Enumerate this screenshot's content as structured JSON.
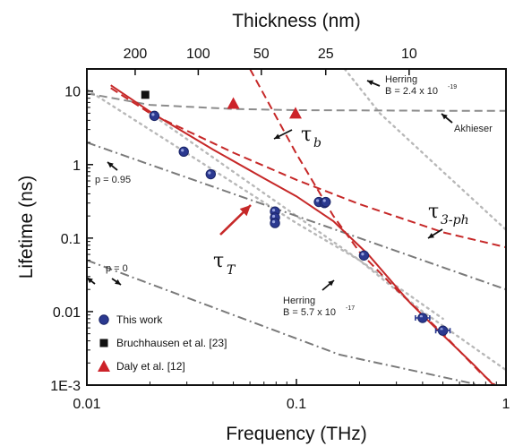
{
  "chart_data": {
    "type": "scatter",
    "xlabel": "Frequency (THz)",
    "ylabel": "Lifetime (ns)",
    "top_xlabel": "Thickness (nm)",
    "xscale": "log",
    "yscale": "log",
    "xlim": [
      0.01,
      1
    ],
    "ylim": [
      0.001,
      20
    ],
    "x_ticks": [
      {
        "v": 0.01,
        "label": "0.01"
      },
      {
        "v": 0.1,
        "label": "0.1"
      },
      {
        "v": 1,
        "label": "1"
      }
    ],
    "y_ticks": [
      {
        "v": 10,
        "label": "10"
      },
      {
        "v": 1,
        "label": "1"
      },
      {
        "v": 0.1,
        "label": "0.1"
      },
      {
        "v": 0.01,
        "label": "0.01"
      },
      {
        "v": 0.001,
        "label": "1E-3"
      }
    ],
    "top_ticks": [
      {
        "v": 0.017,
        "label": "200"
      },
      {
        "v": 0.034,
        "label": "100"
      },
      {
        "v": 0.068,
        "label": "50"
      },
      {
        "v": 0.138,
        "label": "25"
      },
      {
        "v": 0.345,
        "label": "10"
      }
    ],
    "series": [
      {
        "name": "This work",
        "marker": "circle",
        "color": "#2b3990",
        "points": [
          {
            "x": 0.021,
            "y": 4.6
          },
          {
            "x": 0.029,
            "y": 1.5
          },
          {
            "x": 0.039,
            "y": 0.74
          },
          {
            "x": 0.079,
            "y": 0.23
          },
          {
            "x": 0.079,
            "y": 0.19
          },
          {
            "x": 0.079,
            "y": 0.16
          },
          {
            "x": 0.128,
            "y": 0.31
          },
          {
            "x": 0.136,
            "y": 0.3
          },
          {
            "x": 0.138,
            "y": 0.31
          },
          {
            "x": 0.21,
            "y": 0.058
          },
          {
            "x": 0.4,
            "y": 0.0082
          },
          {
            "x": 0.5,
            "y": 0.0055
          }
        ]
      },
      {
        "name": "Bruchhausen et al. [23]",
        "marker": "square",
        "color": "#111111",
        "points": [
          {
            "x": 0.019,
            "y": 8.9
          }
        ]
      },
      {
        "name": "Daly et al. [12]",
        "marker": "triangle",
        "color": "#cc2229",
        "points": [
          {
            "x": 0.05,
            "y": 6.8
          },
          {
            "x": 0.099,
            "y": 5.0
          }
        ]
      }
    ],
    "lines": [
      {
        "id": "tau_T",
        "style": "solid",
        "color": "#c62828",
        "points": [
          [
            0.013,
            12
          ],
          [
            0.021,
            4.8
          ],
          [
            0.04,
            1.6
          ],
          [
            0.07,
            0.65
          ],
          [
            0.1,
            0.37
          ],
          [
            0.15,
            0.17
          ],
          [
            0.22,
            0.06
          ],
          [
            0.35,
            0.013
          ],
          [
            0.5,
            0.0048
          ],
          [
            0.7,
            0.0019
          ],
          [
            0.95,
            0.00078
          ]
        ]
      },
      {
        "id": "tau_b",
        "style": "dashed",
        "color": "#c62828",
        "points": [
          [
            0.06,
            20
          ],
          [
            0.1,
            1.4
          ],
          [
            0.15,
            0.2
          ],
          [
            0.2,
            0.065
          ],
          [
            0.3,
            0.02
          ],
          [
            0.5,
            0.005
          ],
          [
            0.75,
            0.0015
          ],
          [
            1.0,
            0.00075
          ]
        ]
      },
      {
        "id": "tau_3ph",
        "style": "dashed",
        "color": "#c62828",
        "points": [
          [
            0.013,
            11
          ],
          [
            0.02,
            5
          ],
          [
            0.05,
            1.45
          ],
          [
            0.1,
            0.62
          ],
          [
            0.2,
            0.29
          ],
          [
            0.5,
            0.12
          ],
          [
            1.0,
            0.075
          ]
        ]
      },
      {
        "id": "akhieser",
        "style": "dashed",
        "color": "#8c8c8c",
        "points": [
          [
            0.01,
            9.3
          ],
          [
            0.02,
            6.5
          ],
          [
            0.05,
            5.7
          ],
          [
            0.1,
            5.5
          ],
          [
            0.5,
            5.4
          ],
          [
            1.0,
            5.4
          ]
        ]
      },
      {
        "id": "herring_top",
        "style": "dotted",
        "color": "#b8b8b8",
        "points": [
          [
            0.17,
            20
          ],
          [
            0.25,
            5
          ],
          [
            0.5,
            0.8
          ],
          [
            1.0,
            0.13
          ]
        ]
      },
      {
        "id": "herring_bottom",
        "style": "dotted",
        "color": "#b8b8b8",
        "points": [
          [
            0.01,
            10.5
          ],
          [
            0.1,
            0.16
          ],
          [
            0.2,
            0.05
          ],
          [
            0.4,
            0.01
          ],
          [
            1.0,
            0.0016
          ]
        ]
      },
      {
        "id": "p095",
        "style": "dashdot",
        "color": "#7a7a7a",
        "points": [
          [
            0.01,
            2.0
          ],
          [
            1.0,
            0.02
          ]
        ]
      },
      {
        "id": "p0",
        "style": "dashdot",
        "color": "#7a7a7a",
        "points": [
          [
            0.01,
            0.05
          ],
          [
            0.16,
            0.0026
          ],
          [
            0.75,
            0.001
          ]
        ]
      },
      {
        "id": "f_sq",
        "style": "dotted",
        "color": "#b8b8b8",
        "points": [
          [
            0.02,
            5
          ],
          [
            0.5,
            0.008
          ]
        ]
      }
    ],
    "annotations": {
      "herring_top": {
        "line1": "Herring",
        "line2": "B = 2.4 x 10",
        "exp": "-19"
      },
      "herring_bottom": {
        "line1": "Herring",
        "line2": "B = 5.7 x 10",
        "exp": "-17"
      },
      "akhieser": "Akhieser",
      "p095": "p = 0.95",
      "p0": "p = 0",
      "tau_b": {
        "sym": "τ",
        "sub": "b"
      },
      "tau_3ph": {
        "sym": "τ",
        "sub": "3-ph"
      },
      "tau_T": {
        "sym": "τ",
        "sub": "T"
      }
    },
    "legend_placement": "bottom-left",
    "grid": false
  }
}
